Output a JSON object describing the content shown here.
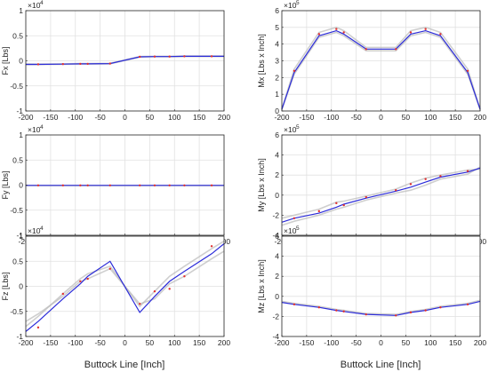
{
  "figure": {
    "xlabel": "Buttock Line [Inch]"
  },
  "chart_data": [
    {
      "type": "line",
      "ylabel": "Fx [Lbs]",
      "exponent": "×10",
      "exponent_power": "4",
      "xlim": [
        -200,
        200
      ],
      "ylim": [
        -1,
        1
      ],
      "xticks": [
        "-200",
        "-150",
        "-100",
        "-50",
        "0",
        "50",
        "100",
        "150",
        "200"
      ],
      "yticks": [
        "-1",
        "-0.5",
        "0",
        "0.5",
        "1"
      ],
      "grid": true,
      "x": [
        -200,
        -175,
        -125,
        -90,
        -75,
        -30,
        30,
        60,
        90,
        120,
        175,
        200
      ],
      "series": [
        {
          "color": "#2b2bd9",
          "values": [
            -0.07,
            -0.07,
            -0.065,
            -0.06,
            -0.06,
            -0.055,
            0.08,
            0.085,
            0.085,
            0.09,
            0.09,
            0.09
          ]
        },
        {
          "color": "#bbbbbb",
          "values": [
            -0.08,
            -0.075,
            -0.07,
            -0.065,
            -0.065,
            -0.06,
            0.075,
            0.08,
            0.08,
            0.085,
            0.085,
            0.085
          ]
        },
        {
          "color": "#bbbbbb",
          "values": [
            -0.06,
            -0.065,
            -0.06,
            -0.055,
            -0.055,
            -0.05,
            0.085,
            0.09,
            0.09,
            0.095,
            0.095,
            0.095
          ]
        }
      ],
      "markers": {
        "color": "#e03030",
        "x": [
          -175,
          -125,
          -90,
          -75,
          -30,
          30,
          60,
          90,
          120,
          175
        ],
        "y": [
          -0.07,
          -0.065,
          -0.06,
          -0.06,
          -0.055,
          0.08,
          0.085,
          0.085,
          0.09,
          0.09
        ]
      }
    },
    {
      "type": "line",
      "ylabel": "Mx [Lbs x Inch]",
      "exponent": "×10",
      "exponent_power": "5",
      "xlim": [
        -200,
        200
      ],
      "ylim": [
        0,
        6
      ],
      "xticks": [
        "-200",
        "-150",
        "-100",
        "-50",
        "0",
        "50",
        "100",
        "150",
        "200"
      ],
      "yticks": [
        "0",
        "1",
        "2",
        "3",
        "4",
        "5",
        "6"
      ],
      "grid": true,
      "x": [
        -200,
        -175,
        -125,
        -90,
        -75,
        -30,
        30,
        60,
        90,
        120,
        175,
        200
      ],
      "series": [
        {
          "color": "#2b2bd9",
          "values": [
            0.1,
            2.3,
            4.5,
            4.8,
            4.6,
            3.7,
            3.7,
            4.6,
            4.8,
            4.5,
            2.3,
            0.1
          ]
        },
        {
          "color": "#bbbbbb",
          "values": [
            0.1,
            2.5,
            4.7,
            5.0,
            4.8,
            3.8,
            3.8,
            4.8,
            5.0,
            4.7,
            2.5,
            0.1
          ]
        },
        {
          "color": "#bbbbbb",
          "values": [
            0.1,
            2.2,
            4.4,
            4.7,
            4.5,
            3.6,
            3.6,
            4.5,
            4.7,
            4.4,
            2.2,
            0.1
          ]
        }
      ],
      "markers": {
        "color": "#e03030",
        "x": [
          -175,
          -125,
          -90,
          -75,
          -30,
          30,
          60,
          90,
          120,
          175
        ],
        "y": [
          2.4,
          4.6,
          4.9,
          4.7,
          3.7,
          3.7,
          4.7,
          4.9,
          4.6,
          2.4
        ]
      }
    },
    {
      "type": "line",
      "ylabel": "Fy [Lbs]",
      "exponent": "×10",
      "exponent_power": "4",
      "xlim": [
        -200,
        200
      ],
      "ylim": [
        -1,
        1
      ],
      "xticks": [
        "-200",
        "-150",
        "-100",
        "-50",
        "0",
        "50",
        "100",
        "150",
        "200"
      ],
      "yticks": [
        "-1",
        "-0.5",
        "0",
        "0.5",
        "1"
      ],
      "grid": true,
      "x": [
        -200,
        -175,
        -125,
        -90,
        -75,
        -30,
        30,
        60,
        90,
        120,
        175,
        200
      ],
      "series": [
        {
          "color": "#2b2bd9",
          "values": [
            -0.005,
            -0.005,
            -0.005,
            -0.005,
            -0.005,
            -0.005,
            -0.005,
            -0.005,
            -0.005,
            -0.005,
            -0.005,
            -0.005
          ]
        },
        {
          "color": "#bbbbbb",
          "values": [
            -0.01,
            -0.01,
            -0.01,
            -0.01,
            -0.01,
            -0.01,
            -0.01,
            -0.01,
            -0.01,
            -0.01,
            -0.01,
            -0.01
          ]
        }
      ],
      "markers": {
        "color": "#e03030",
        "x": [
          -175,
          -125,
          -90,
          -75,
          -30,
          30,
          60,
          90,
          120,
          175
        ],
        "y": [
          -0.005,
          -0.005,
          -0.005,
          -0.005,
          -0.005,
          -0.005,
          -0.005,
          -0.005,
          -0.005,
          -0.005
        ]
      }
    },
    {
      "type": "line",
      "ylabel": "My [Lbs x Inch]",
      "exponent": "×10",
      "exponent_power": "5",
      "xlim": [
        -200,
        200
      ],
      "ylim": [
        -4,
        6
      ],
      "xticks": [
        "-200",
        "-150",
        "-100",
        "-50",
        "0",
        "50",
        "100",
        "150",
        "200"
      ],
      "yticks": [
        "-4",
        "-2",
        "0",
        "2",
        "4",
        "6"
      ],
      "grid": true,
      "x": [
        -200,
        -175,
        -125,
        -90,
        -75,
        -30,
        30,
        60,
        90,
        120,
        175,
        200
      ],
      "series": [
        {
          "color": "#2b2bd9",
          "values": [
            -2.7,
            -2.3,
            -1.8,
            -1.2,
            -0.9,
            -0.3,
            0.4,
            0.8,
            1.3,
            1.8,
            2.3,
            2.7
          ]
        },
        {
          "color": "#bbbbbb",
          "values": [
            -2.3,
            -2.0,
            -1.4,
            -0.7,
            -0.6,
            -0.1,
            0.6,
            1.2,
            1.7,
            2.0,
            2.5,
            2.6
          ]
        },
        {
          "color": "#bbbbbb",
          "values": [
            -3.0,
            -2.6,
            -2.0,
            -1.4,
            -1.2,
            -0.5,
            0.2,
            0.5,
            1.0,
            1.6,
            2.1,
            2.8
          ]
        }
      ],
      "markers": {
        "color": "#e03030",
        "x": [
          -175,
          -125,
          -90,
          -75,
          -30,
          30,
          60,
          90,
          120,
          175
        ],
        "y": [
          -2.3,
          -1.6,
          -0.8,
          -1.0,
          -0.2,
          0.5,
          1.1,
          1.6,
          1.9,
          2.4
        ]
      }
    },
    {
      "type": "line",
      "ylabel": "Fz [Lbs]",
      "exponent": "×10",
      "exponent_power": "4",
      "xlim": [
        -200,
        200
      ],
      "ylim": [
        -1,
        1
      ],
      "xticks": [
        "-200",
        "-150",
        "-100",
        "-50",
        "0",
        "50",
        "100",
        "150",
        "200"
      ],
      "yticks": [
        "-1",
        "-0.5",
        "0",
        "0.5",
        "1"
      ],
      "grid": true,
      "x": [
        -200,
        -175,
        -125,
        -90,
        -75,
        -30,
        30,
        60,
        90,
        120,
        175,
        200
      ],
      "series": [
        {
          "color": "#2b2bd9",
          "values": [
            -0.9,
            -0.7,
            -0.25,
            0.05,
            0.2,
            0.5,
            -0.52,
            -0.2,
            0.1,
            0.3,
            0.65,
            0.85
          ]
        },
        {
          "color": "#bbbbbb",
          "values": [
            -0.8,
            -0.6,
            -0.15,
            0.15,
            0.25,
            0.4,
            -0.4,
            -0.1,
            0.2,
            0.4,
            0.75,
            0.9
          ]
        },
        {
          "color": "#bbbbbb",
          "values": [
            -0.7,
            -0.55,
            -0.2,
            0.1,
            0.15,
            0.35,
            -0.35,
            -0.25,
            0.05,
            0.2,
            0.55,
            0.7
          ]
        }
      ],
      "markers": {
        "color": "#e03030",
        "x": [
          -175,
          -125,
          -90,
          -75,
          -30,
          30,
          60,
          90,
          120,
          175
        ],
        "y": [
          -0.82,
          -0.15,
          0.1,
          0.15,
          0.35,
          -0.35,
          -0.1,
          -0.05,
          0.2,
          0.8
        ]
      }
    },
    {
      "type": "line",
      "ylabel": "Mz [Lbs x Inch]",
      "exponent": "×10",
      "exponent_power": "5",
      "xlim": [
        -200,
        200
      ],
      "ylim": [
        -4,
        6
      ],
      "xticks": [
        "-200",
        "-150",
        "-100",
        "-50",
        "0",
        "50",
        "100",
        "150",
        "200"
      ],
      "yticks": [
        "-4",
        "-2",
        "0",
        "2",
        "4",
        "6"
      ],
      "grid": true,
      "x": [
        -200,
        -175,
        -125,
        -90,
        -75,
        -30,
        30,
        60,
        90,
        120,
        175,
        200
      ],
      "series": [
        {
          "color": "#2b2bd9",
          "values": [
            -0.6,
            -0.8,
            -1.1,
            -1.4,
            -1.5,
            -1.8,
            -1.9,
            -1.6,
            -1.4,
            -1.1,
            -0.8,
            -0.5
          ]
        },
        {
          "color": "#bbbbbb",
          "values": [
            -0.5,
            -0.7,
            -1.0,
            -1.3,
            -1.4,
            -1.7,
            -1.8,
            -1.5,
            -1.3,
            -1.0,
            -0.7,
            -0.4
          ]
        }
      ],
      "markers": {
        "color": "#e03030",
        "x": [
          -175,
          -125,
          -90,
          -75,
          -30,
          30,
          60,
          90,
          120,
          175
        ],
        "y": [
          -0.8,
          -1.1,
          -1.4,
          -1.5,
          -1.8,
          -1.9,
          -1.6,
          -1.4,
          -1.1,
          -0.8
        ]
      }
    }
  ]
}
